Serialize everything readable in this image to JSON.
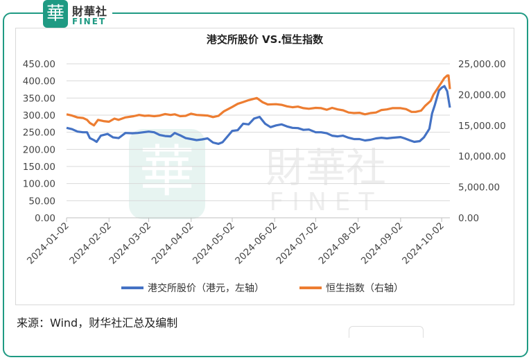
{
  "brand": {
    "mark": "華",
    "name_cn": "財華社",
    "name_en": "FINET"
  },
  "watermark": {
    "mark": "華",
    "text_cn": "財華社",
    "text_en": "FINET"
  },
  "source_text": "来源：Wind，财华社汇总及编制",
  "colors": {
    "accent": "#1f9a83",
    "blue": "#4472c4",
    "orange": "#ed7d31"
  },
  "chart_data": {
    "type": "line",
    "title": "港交所股价 VS.恒生指数",
    "grid": true,
    "legend_position": "bottom",
    "x_tick_labels": [
      "2024-01-02",
      "2024-02-02",
      "2024-03-02",
      "2024-04-02",
      "2024-05-02",
      "2024-06-02",
      "2024-07-02",
      "2024-08-02",
      "2024-09-02",
      "2024-10-02"
    ],
    "x_range": [
      "2024-01-02",
      "2024-10-08"
    ],
    "y_left": {
      "ticks": [
        "0.00",
        "50.00",
        "100.00",
        "150.00",
        "200.00",
        "250.00",
        "300.00",
        "350.00",
        "400.00",
        "450.00"
      ],
      "range": [
        0,
        450
      ]
    },
    "y_right": {
      "ticks": [
        "0.00",
        "5,000.00",
        "10,000.00",
        "15,000.00",
        "20,000.00",
        "25,000.00"
      ],
      "range": [
        0,
        25000
      ]
    },
    "series": [
      {
        "name": "港交所股价（港元，左轴）",
        "axis": "left",
        "points": [
          [
            "2024-01-02",
            263
          ],
          [
            "2024-01-06",
            259
          ],
          [
            "2024-01-10",
            252
          ],
          [
            "2024-01-14",
            250
          ],
          [
            "2024-01-17",
            250
          ],
          [
            "2024-01-19",
            233
          ],
          [
            "2024-01-22",
            227
          ],
          [
            "2024-01-24",
            222
          ],
          [
            "2024-01-27",
            240
          ],
          [
            "2024-02-01",
            245
          ],
          [
            "2024-02-05",
            235
          ],
          [
            "2024-02-09",
            233
          ],
          [
            "2024-02-14",
            248
          ],
          [
            "2024-02-19",
            247
          ],
          [
            "2024-02-23",
            248
          ],
          [
            "2024-02-27",
            250
          ],
          [
            "2024-03-02",
            252
          ],
          [
            "2024-03-06",
            250
          ],
          [
            "2024-03-10",
            242
          ],
          [
            "2024-03-14",
            239
          ],
          [
            "2024-03-18",
            238
          ],
          [
            "2024-03-21",
            248
          ],
          [
            "2024-03-25",
            241
          ],
          [
            "2024-03-29",
            233
          ],
          [
            "2024-04-02",
            230
          ],
          [
            "2024-04-06",
            227
          ],
          [
            "2024-04-10",
            229
          ],
          [
            "2024-04-14",
            232
          ],
          [
            "2024-04-18",
            220
          ],
          [
            "2024-04-22",
            216
          ],
          [
            "2024-04-25",
            221
          ],
          [
            "2024-04-29",
            240
          ],
          [
            "2024-05-02",
            254
          ],
          [
            "2024-05-06",
            256
          ],
          [
            "2024-05-10",
            275
          ],
          [
            "2024-05-14",
            273
          ],
          [
            "2024-05-18",
            290
          ],
          [
            "2024-05-22",
            295
          ],
          [
            "2024-05-26",
            275
          ],
          [
            "2024-05-30",
            265
          ],
          [
            "2024-06-03",
            270
          ],
          [
            "2024-06-07",
            273
          ],
          [
            "2024-06-11",
            267
          ],
          [
            "2024-06-15",
            263
          ],
          [
            "2024-06-19",
            262
          ],
          [
            "2024-06-23",
            257
          ],
          [
            "2024-06-27",
            258
          ],
          [
            "2024-07-02",
            250
          ],
          [
            "2024-07-06",
            250
          ],
          [
            "2024-07-10",
            247
          ],
          [
            "2024-07-14",
            240
          ],
          [
            "2024-07-18",
            238
          ],
          [
            "2024-07-22",
            240
          ],
          [
            "2024-07-26",
            234
          ],
          [
            "2024-07-30",
            230
          ],
          [
            "2024-08-03",
            230
          ],
          [
            "2024-08-07",
            226
          ],
          [
            "2024-08-11",
            228
          ],
          [
            "2024-08-15",
            232
          ],
          [
            "2024-08-19",
            234
          ],
          [
            "2024-08-23",
            232
          ],
          [
            "2024-08-27",
            234
          ],
          [
            "2024-09-02",
            236
          ],
          [
            "2024-09-05",
            232
          ],
          [
            "2024-09-09",
            226
          ],
          [
            "2024-09-12",
            222
          ],
          [
            "2024-09-16",
            224
          ],
          [
            "2024-09-19",
            235
          ],
          [
            "2024-09-23",
            260
          ],
          [
            "2024-09-25",
            305
          ],
          [
            "2024-09-27",
            330
          ],
          [
            "2024-09-30",
            372
          ],
          [
            "2024-10-02",
            380
          ],
          [
            "2024-10-04",
            385
          ],
          [
            "2024-10-06",
            370
          ],
          [
            "2024-10-08",
            322
          ]
        ]
      },
      {
        "name": "恒生指数（右轴）",
        "axis": "right",
        "points": [
          [
            "2024-01-02",
            16800
          ],
          [
            "2024-01-06",
            16600
          ],
          [
            "2024-01-10",
            16300
          ],
          [
            "2024-01-14",
            16200
          ],
          [
            "2024-01-17",
            15900
          ],
          [
            "2024-01-19",
            15400
          ],
          [
            "2024-01-22",
            15000
          ],
          [
            "2024-01-25",
            15900
          ],
          [
            "2024-01-29",
            15700
          ],
          [
            "2024-02-02",
            15600
          ],
          [
            "2024-02-06",
            16100
          ],
          [
            "2024-02-09",
            15900
          ],
          [
            "2024-02-14",
            16300
          ],
          [
            "2024-02-20",
            16500
          ],
          [
            "2024-02-24",
            16700
          ],
          [
            "2024-02-28",
            16550
          ],
          [
            "2024-03-02",
            16600
          ],
          [
            "2024-03-06",
            16500
          ],
          [
            "2024-03-10",
            16600
          ],
          [
            "2024-03-14",
            16850
          ],
          [
            "2024-03-18",
            16700
          ],
          [
            "2024-03-21",
            16800
          ],
          [
            "2024-03-25",
            16500
          ],
          [
            "2024-03-29",
            16550
          ],
          [
            "2024-04-02",
            16900
          ],
          [
            "2024-04-06",
            16700
          ],
          [
            "2024-04-10",
            16650
          ],
          [
            "2024-04-14",
            16600
          ],
          [
            "2024-04-18",
            16350
          ],
          [
            "2024-04-22",
            16550
          ],
          [
            "2024-04-26",
            17300
          ],
          [
            "2024-05-02",
            18000
          ],
          [
            "2024-05-06",
            18500
          ],
          [
            "2024-05-10",
            18800
          ],
          [
            "2024-05-14",
            19100
          ],
          [
            "2024-05-20",
            19450
          ],
          [
            "2024-05-24",
            18800
          ],
          [
            "2024-05-28",
            18400
          ],
          [
            "2024-06-03",
            18450
          ],
          [
            "2024-06-07",
            18350
          ],
          [
            "2024-06-11",
            18100
          ],
          [
            "2024-06-15",
            17950
          ],
          [
            "2024-06-19",
            18050
          ],
          [
            "2024-06-23",
            17800
          ],
          [
            "2024-06-27",
            17700
          ],
          [
            "2024-07-02",
            17850
          ],
          [
            "2024-07-06",
            17800
          ],
          [
            "2024-07-10",
            17550
          ],
          [
            "2024-07-14",
            17850
          ],
          [
            "2024-07-18",
            17600
          ],
          [
            "2024-07-22",
            17450
          ],
          [
            "2024-07-26",
            17100
          ],
          [
            "2024-07-30",
            17000
          ],
          [
            "2024-08-03",
            17050
          ],
          [
            "2024-08-07",
            16800
          ],
          [
            "2024-08-11",
            17000
          ],
          [
            "2024-08-15",
            17100
          ],
          [
            "2024-08-19",
            17500
          ],
          [
            "2024-08-23",
            17600
          ],
          [
            "2024-08-27",
            17800
          ],
          [
            "2024-09-02",
            17800
          ],
          [
            "2024-09-06",
            17650
          ],
          [
            "2024-09-10",
            17200
          ],
          [
            "2024-09-13",
            17200
          ],
          [
            "2024-09-17",
            17400
          ],
          [
            "2024-09-20",
            18200
          ],
          [
            "2024-09-24",
            19000
          ],
          [
            "2024-09-26",
            20000
          ],
          [
            "2024-09-29",
            21000
          ],
          [
            "2024-10-02",
            22000
          ],
          [
            "2024-10-04",
            22700
          ],
          [
            "2024-10-06",
            23100
          ],
          [
            "2024-10-07",
            23100
          ],
          [
            "2024-10-08",
            20900
          ]
        ]
      }
    ]
  }
}
